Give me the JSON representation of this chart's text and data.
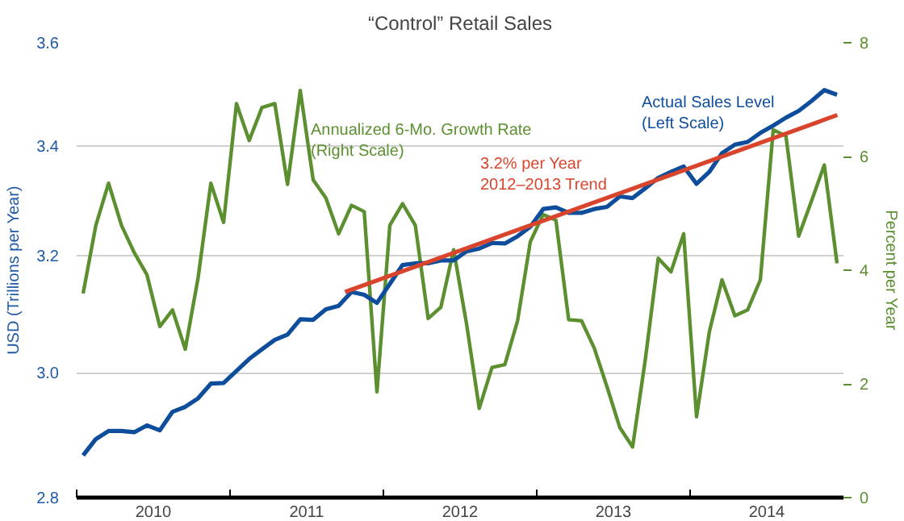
{
  "chart_data": {
    "type": "line",
    "title": "“Control” Retail Sales",
    "ylabel": "USD (Trillions per Year)",
    "y2label": "Percent per Year",
    "x": [
      2010.042,
      2010.125,
      2010.208,
      2010.292,
      2010.375,
      2010.458,
      2010.542,
      2010.625,
      2010.708,
      2010.792,
      2010.875,
      2010.958,
      2011.042,
      2011.125,
      2011.208,
      2011.292,
      2011.375,
      2011.458,
      2011.542,
      2011.625,
      2011.708,
      2011.792,
      2011.875,
      2011.958,
      2012.042,
      2012.125,
      2012.208,
      2012.292,
      2012.375,
      2012.458,
      2012.542,
      2012.625,
      2012.708,
      2012.792,
      2012.875,
      2012.958,
      2013.042,
      2013.125,
      2013.208,
      2013.292,
      2013.375,
      2013.458,
      2013.542,
      2013.625,
      2013.708,
      2013.792,
      2013.875,
      2013.958,
      2014.042,
      2014.125,
      2014.208,
      2014.292,
      2014.375,
      2014.458,
      2014.542,
      2014.625,
      2014.708,
      2014.792,
      2014.875,
      2014.958
    ],
    "series": [
      {
        "name": "Annualized 6-Mo. Growth Rate\n(Right Scale)",
        "color": "#5b8f2f",
        "axis": "y2",
        "values": [
          3.59,
          4.79,
          5.53,
          4.79,
          4.31,
          3.92,
          3.01,
          3.3,
          2.61,
          3.87,
          5.53,
          4.84,
          6.93,
          6.28,
          6.86,
          6.93,
          5.51,
          7.16,
          5.59,
          5.27,
          4.64,
          5.14,
          5.03,
          1.86,
          4.79,
          5.17,
          4.79,
          3.15,
          3.35,
          4.36,
          3.06,
          1.57,
          2.29,
          2.34,
          3.11,
          4.5,
          4.98,
          4.88,
          3.13,
          3.11,
          2.63,
          1.95,
          1.23,
          0.89,
          2.43,
          4.21,
          3.97,
          4.64,
          1.42,
          2.91,
          3.83,
          3.2,
          3.3,
          3.83,
          6.47,
          6.36,
          4.6,
          5.22,
          5.85,
          4.12
        ]
      },
      {
        "name": "Actual Sales Level\n(Left Scale)",
        "color": "#0e4d9c",
        "values": [
          2.866,
          2.892,
          2.905,
          2.905,
          2.903,
          2.914,
          2.906,
          2.936,
          2.944,
          2.958,
          2.982,
          2.983,
          3.003,
          3.023,
          3.039,
          3.055,
          3.064,
          3.09,
          3.089,
          3.107,
          3.113,
          3.137,
          3.132,
          3.118,
          3.151,
          3.184,
          3.187,
          3.187,
          3.192,
          3.192,
          3.208,
          3.213,
          3.223,
          3.222,
          3.235,
          3.252,
          3.284,
          3.287,
          3.277,
          3.277,
          3.284,
          3.288,
          3.307,
          3.304,
          3.322,
          3.341,
          3.352,
          3.362,
          3.33,
          3.352,
          3.387,
          3.403,
          3.408,
          3.425,
          3.439,
          3.454,
          3.467,
          3.486,
          3.507,
          3.498
        ]
      },
      {
        "name": "3.2% per Year\n2012–2013 Trend",
        "color": "#d8452c",
        "x": [
          2011.75,
          2014.96
        ],
        "values": [
          3.137,
          3.459
        ]
      }
    ],
    "log": "y",
    "ylim": [
      2.8,
      3.6
    ],
    "yticks": [
      2.8,
      {
        "value": 3.0,
        "label": "3.0"
      },
      3.2,
      3.4,
      3.6
    ],
    "y2lim": [
      0,
      8
    ],
    "y2ticks": [
      0,
      2,
      4,
      6,
      8
    ],
    "xlim": [
      2010,
      2015
    ],
    "xticks": [
      {
        "value": 2010,
        "label": null
      },
      {
        "value": 2010.5,
        "label": "2010"
      },
      {
        "value": 2011,
        "label": null
      },
      {
        "value": 2011.5,
        "label": "2011"
      },
      {
        "value": 2012,
        "label": null
      },
      {
        "value": 2012.5,
        "label": "2012"
      },
      {
        "value": 2013,
        "label": null
      },
      {
        "value": 2013.5,
        "label": "2013"
      },
      {
        "value": 2014,
        "label": null
      },
      {
        "value": 2014.5,
        "label": "2014"
      }
    ],
    "grid": "y",
    "marker": "none",
    "line_style": "solid"
  }
}
